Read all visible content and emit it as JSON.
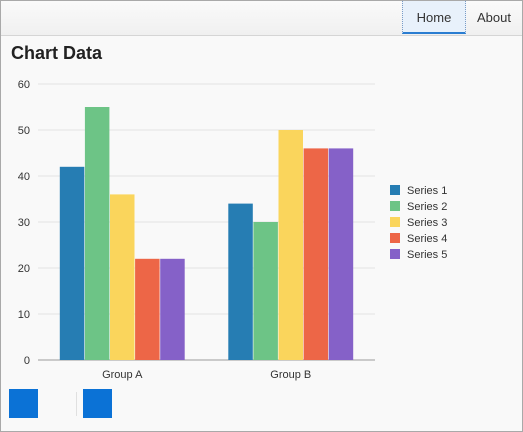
{
  "nav": {
    "home_label": "Home",
    "about_label": "About"
  },
  "page_title": "Chart Data",
  "colors": {
    "accent": "#0b72d6"
  },
  "chart_data": {
    "type": "bar",
    "categories": [
      "Group A",
      "Group B"
    ],
    "series": [
      {
        "name": "Series 1",
        "color": "#267db3",
        "values": [
          42,
          34
        ]
      },
      {
        "name": "Series 2",
        "color": "#6dc486",
        "values": [
          55,
          30
        ]
      },
      {
        "name": "Series 3",
        "color": "#fad55c",
        "values": [
          36,
          50
        ]
      },
      {
        "name": "Series 4",
        "color": "#ed6647",
        "values": [
          22,
          46
        ]
      },
      {
        "name": "Series 5",
        "color": "#8561c8",
        "values": [
          22,
          46
        ]
      }
    ],
    "ylim": [
      0,
      60
    ],
    "yticks": [
      0,
      10,
      20,
      30,
      40,
      50,
      60
    ],
    "grid": true,
    "legend": "right"
  }
}
